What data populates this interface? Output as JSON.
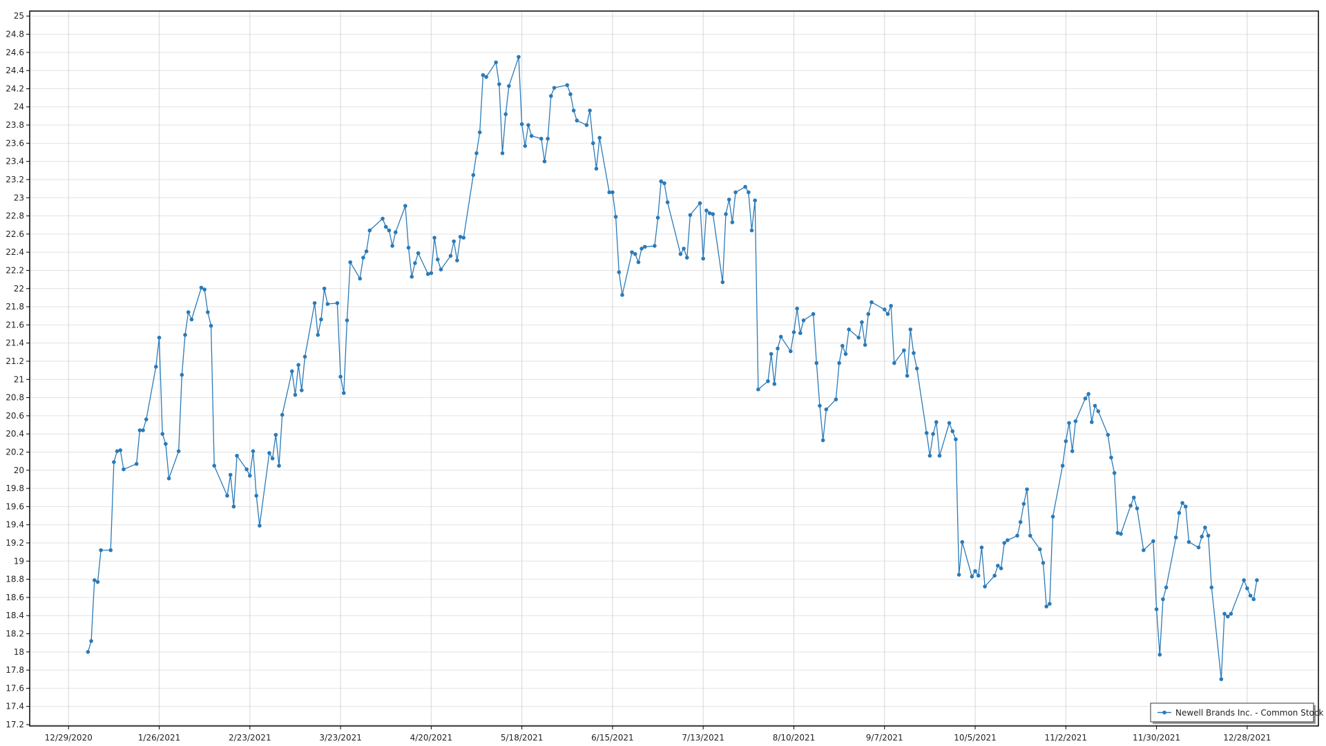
{
  "chart_data": {
    "type": "line",
    "title": "",
    "xlabel": "",
    "ylabel": "",
    "ylim": [
      17.185,
      25.055
    ],
    "xlim": [
      "12/17/2020",
      "1/19/2022"
    ],
    "grid": true,
    "legend_position": "bottom-right",
    "x_ticks": [
      "12/29/2020",
      "1/26/2021",
      "2/23/2021",
      "3/23/2021",
      "4/20/2021",
      "5/18/2021",
      "6/15/2021",
      "7/13/2021",
      "8/10/2021",
      "9/7/2021",
      "10/5/2021",
      "11/2/2021",
      "11/30/2021",
      "12/28/2021"
    ],
    "y_ticks": [
      "17.2",
      "17.4",
      "17.6",
      "17.8",
      "18",
      "18.2",
      "18.4",
      "18.6",
      "18.8",
      "19",
      "19.2",
      "19.4",
      "19.6",
      "19.8",
      "20",
      "20.2",
      "20.4",
      "20.6",
      "20.8",
      "21",
      "21.2",
      "21.4",
      "21.6",
      "21.8",
      "22",
      "22.2",
      "22.4",
      "22.6",
      "22.8",
      "23",
      "23.2",
      "23.4",
      "23.6",
      "23.8",
      "24",
      "24.2",
      "24.4",
      "24.6",
      "24.8",
      "25"
    ],
    "series": [
      {
        "name": "Newell Brands Inc. - Common Stock",
        "color": "#2a7ab8",
        "x": [
          "1/4/2021",
          "1/5/2021",
          "1/6/2021",
          "1/7/2021",
          "1/8/2021",
          "1/11/2021",
          "1/12/2021",
          "1/13/2021",
          "1/14/2021",
          "1/15/2021",
          "1/19/2021",
          "1/20/2021",
          "1/21/2021",
          "1/22/2021",
          "1/25/2021",
          "1/26/2021",
          "1/27/2021",
          "1/28/2021",
          "1/29/2021",
          "2/1/2021",
          "2/2/2021",
          "2/3/2021",
          "2/4/2021",
          "2/5/2021",
          "2/8/2021",
          "2/9/2021",
          "2/10/2021",
          "2/11/2021",
          "2/12/2021",
          "2/16/2021",
          "2/17/2021",
          "2/18/2021",
          "2/19/2021",
          "2/22/2021",
          "2/23/2021",
          "2/24/2021",
          "2/25/2021",
          "2/26/2021",
          "3/1/2021",
          "3/2/2021",
          "3/3/2021",
          "3/4/2021",
          "3/5/2021",
          "3/8/2021",
          "3/9/2021",
          "3/10/2021",
          "3/11/2021",
          "3/12/2021",
          "3/15/2021",
          "3/16/2021",
          "3/17/2021",
          "3/18/2021",
          "3/19/2021",
          "3/22/2021",
          "3/23/2021",
          "3/24/2021",
          "3/25/2021",
          "3/26/2021",
          "3/29/2021",
          "3/30/2021",
          "3/31/2021",
          "4/1/2021",
          "4/5/2021",
          "4/6/2021",
          "4/7/2021",
          "4/8/2021",
          "4/9/2021",
          "4/12/2021",
          "4/13/2021",
          "4/14/2021",
          "4/15/2021",
          "4/16/2021",
          "4/19/2021",
          "4/20/2021",
          "4/21/2021",
          "4/22/2021",
          "4/23/2021",
          "4/26/2021",
          "4/27/2021",
          "4/28/2021",
          "4/29/2021",
          "4/30/2021",
          "5/3/2021",
          "5/4/2021",
          "5/5/2021",
          "5/6/2021",
          "5/7/2021",
          "5/10/2021",
          "5/11/2021",
          "5/12/2021",
          "5/13/2021",
          "5/14/2021",
          "5/17/2021",
          "5/18/2021",
          "5/19/2021",
          "5/20/2021",
          "5/21/2021",
          "5/24/2021",
          "5/25/2021",
          "5/26/2021",
          "5/27/2021",
          "5/28/2021",
          "6/1/2021",
          "6/2/2021",
          "6/3/2021",
          "6/4/2021",
          "6/7/2021",
          "6/8/2021",
          "6/9/2021",
          "6/10/2021",
          "6/11/2021",
          "6/14/2021",
          "6/15/2021",
          "6/16/2021",
          "6/17/2021",
          "6/18/2021",
          "6/21/2021",
          "6/22/2021",
          "6/23/2021",
          "6/24/2021",
          "6/25/2021",
          "6/28/2021",
          "6/29/2021",
          "6/30/2021",
          "7/1/2021",
          "7/2/2021",
          "7/6/2021",
          "7/7/2021",
          "7/8/2021",
          "7/9/2021",
          "7/12/2021",
          "7/13/2021",
          "7/14/2021",
          "7/15/2021",
          "7/16/2021",
          "7/19/2021",
          "7/20/2021",
          "7/21/2021",
          "7/22/2021",
          "7/23/2021",
          "7/26/2021",
          "7/27/2021",
          "7/28/2021",
          "7/29/2021",
          "7/30/2021",
          "8/2/2021",
          "8/3/2021",
          "8/4/2021",
          "8/5/2021",
          "8/6/2021",
          "8/9/2021",
          "8/10/2021",
          "8/11/2021",
          "8/12/2021",
          "8/13/2021",
          "8/16/2021",
          "8/17/2021",
          "8/18/2021",
          "8/19/2021",
          "8/20/2021",
          "8/23/2021",
          "8/24/2021",
          "8/25/2021",
          "8/26/2021",
          "8/27/2021",
          "8/30/2021",
          "8/31/2021",
          "9/1/2021",
          "9/2/2021",
          "9/3/2021",
          "9/7/2021",
          "9/8/2021",
          "9/9/2021",
          "9/10/2021",
          "9/13/2021",
          "9/14/2021",
          "9/15/2021",
          "9/16/2021",
          "9/17/2021",
          "9/20/2021",
          "9/21/2021",
          "9/22/2021",
          "9/23/2021",
          "9/24/2021",
          "9/27/2021",
          "9/28/2021",
          "9/29/2021",
          "9/30/2021",
          "10/1/2021",
          "10/4/2021",
          "10/5/2021",
          "10/6/2021",
          "10/7/2021",
          "10/8/2021",
          "10/11/2021",
          "10/12/2021",
          "10/13/2021",
          "10/14/2021",
          "10/15/2021",
          "10/18/2021",
          "10/19/2021",
          "10/20/2021",
          "10/21/2021",
          "10/22/2021",
          "10/25/2021",
          "10/26/2021",
          "10/27/2021",
          "10/28/2021",
          "10/29/2021",
          "11/1/2021",
          "11/2/2021",
          "11/3/2021",
          "11/4/2021",
          "11/5/2021",
          "11/8/2021",
          "11/9/2021",
          "11/10/2021",
          "11/11/2021",
          "11/12/2021",
          "11/15/2021",
          "11/16/2021",
          "11/17/2021",
          "11/18/2021",
          "11/19/2021",
          "11/22/2021",
          "11/23/2021",
          "11/24/2021",
          "11/26/2021",
          "11/29/2021",
          "11/30/2021",
          "12/1/2021",
          "12/2/2021",
          "12/3/2021",
          "12/6/2021",
          "12/7/2021",
          "12/8/2021",
          "12/9/2021",
          "12/10/2021",
          "12/13/2021",
          "12/14/2021",
          "12/15/2021",
          "12/16/2021",
          "12/17/2021",
          "12/20/2021",
          "12/21/2021",
          "12/22/2021",
          "12/23/2021",
          "12/27/2021",
          "12/28/2021",
          "12/29/2021",
          "12/30/2021",
          "12/31/2021"
        ],
        "values": [
          18.0,
          18.12,
          18.79,
          18.77,
          19.12,
          19.12,
          20.09,
          20.21,
          20.22,
          20.01,
          20.07,
          20.44,
          20.44,
          20.56,
          21.14,
          21.46,
          20.4,
          20.29,
          19.91,
          20.21,
          21.05,
          21.49,
          21.74,
          21.66,
          22.01,
          21.99,
          21.74,
          21.59,
          20.05,
          19.72,
          19.95,
          19.6,
          20.16,
          20.01,
          19.94,
          20.21,
          19.72,
          19.39,
          20.19,
          20.13,
          20.39,
          20.05,
          20.61,
          21.09,
          20.83,
          21.16,
          20.88,
          21.25,
          21.84,
          21.49,
          21.66,
          22.0,
          21.83,
          21.84,
          21.03,
          20.85,
          21.65,
          22.29,
          22.11,
          22.34,
          22.41,
          22.64,
          22.77,
          22.68,
          22.64,
          22.47,
          22.62,
          22.91,
          22.45,
          22.13,
          22.28,
          22.39,
          22.16,
          22.17,
          22.56,
          22.32,
          22.21,
          22.36,
          22.52,
          22.31,
          22.57,
          22.56,
          23.25,
          23.49,
          23.72,
          24.35,
          24.33,
          24.49,
          24.25,
          23.49,
          23.92,
          24.23,
          24.55,
          23.81,
          23.57,
          23.8,
          23.68,
          23.65,
          23.4,
          23.65,
          24.12,
          24.21,
          24.24,
          24.14,
          23.96,
          23.85,
          23.8,
          23.96,
          23.6,
          23.32,
          23.66,
          23.06,
          23.06,
          22.79,
          22.18,
          21.93,
          22.4,
          22.38,
          22.29,
          22.44,
          22.46,
          22.47,
          22.78,
          23.18,
          23.16,
          22.95,
          22.38,
          22.44,
          22.34,
          22.81,
          22.94,
          22.33,
          22.86,
          22.83,
          22.82,
          22.07,
          22.82,
          22.98,
          22.73,
          23.06,
          23.12,
          23.06,
          22.64,
          22.97,
          20.89,
          20.98,
          21.28,
          20.95,
          21.34,
          21.47,
          21.31,
          21.52,
          21.78,
          21.51,
          21.65,
          21.72,
          21.18,
          20.71,
          20.33,
          20.67,
          20.78,
          21.18,
          21.37,
          21.28,
          21.55,
          21.46,
          21.63,
          21.38,
          21.72,
          21.85,
          21.77,
          21.72,
          21.81,
          21.18,
          21.32,
          21.04,
          21.55,
          21.29,
          21.12,
          20.41,
          20.16,
          20.4,
          20.53,
          20.16,
          20.52,
          20.43,
          20.34,
          18.85,
          19.21,
          18.83,
          18.89,
          18.84,
          19.15,
          18.72,
          18.84,
          18.95,
          18.92,
          19.2,
          19.23,
          19.28,
          19.43,
          19.63,
          19.79,
          19.28,
          19.13,
          18.98,
          18.5,
          18.53,
          19.49,
          20.05,
          20.32,
          20.52,
          20.21,
          20.54,
          20.79,
          20.84,
          20.53,
          20.71,
          20.65,
          20.39,
          20.14,
          19.97,
          19.31,
          19.3,
          19.61,
          19.7,
          19.58,
          19.12,
          19.22,
          18.47,
          17.97,
          18.58,
          18.71,
          19.26,
          19.53,
          19.64,
          19.6,
          19.21,
          19.15,
          19.27,
          19.37,
          19.28,
          18.71,
          17.7,
          18.42,
          18.39,
          18.42,
          18.79,
          18.7,
          18.62,
          18.58,
          18.79
        ]
      }
    ]
  }
}
